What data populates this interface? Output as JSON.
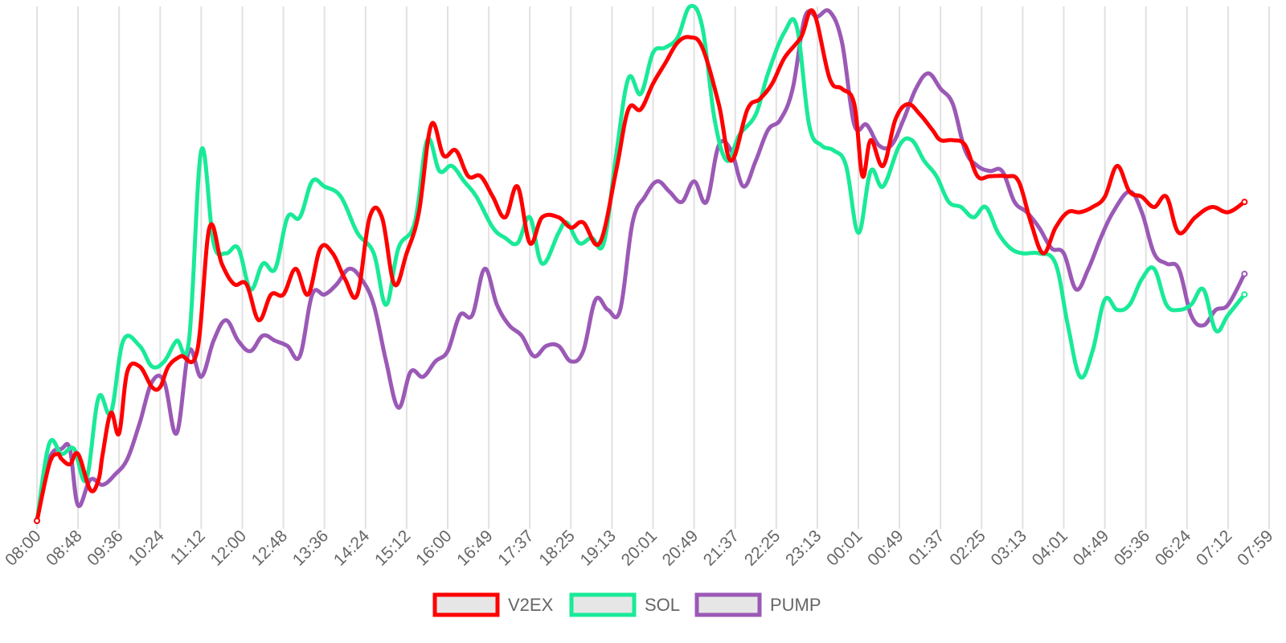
{
  "chart_data": {
    "type": "line",
    "grid": "vertical",
    "legend_position": "bottom",
    "x_labels": [
      "08:00",
      "08:48",
      "09:36",
      "10:24",
      "11:12",
      "12:00",
      "12:48",
      "13:36",
      "14:24",
      "15:12",
      "16:00",
      "16:49",
      "17:37",
      "18:25",
      "19:13",
      "20:01",
      "20:49",
      "21:37",
      "22:25",
      "23:13",
      "00:01",
      "00:49",
      "01:37",
      "02:25",
      "03:13",
      "04:01",
      "04:49",
      "05:36",
      "06:24",
      "07:12",
      "07:59"
    ],
    "y_axis_labels_shown": false,
    "series": [
      {
        "name": "V2EX",
        "color": "#ff0000",
        "points": [
          [
            0,
            0
          ],
          [
            0.3,
            11
          ],
          [
            0.5,
            13
          ],
          [
            0.6,
            12
          ],
          [
            0.8,
            11
          ],
          [
            1,
            13
          ],
          [
            1.3,
            6
          ],
          [
            1.5,
            8
          ],
          [
            1.6,
            13
          ],
          [
            1.8,
            21
          ],
          [
            2,
            17
          ],
          [
            2.2,
            29
          ],
          [
            2.5,
            30
          ],
          [
            2.8,
            26
          ],
          [
            3,
            26
          ],
          [
            3.2,
            30
          ],
          [
            3.5,
            32
          ],
          [
            3.9,
            33
          ],
          [
            4.2,
            57
          ],
          [
            4.5,
            50
          ],
          [
            4.8,
            46
          ],
          [
            5.1,
            46
          ],
          [
            5.4,
            39
          ],
          [
            5.7,
            44
          ],
          [
            6,
            44
          ],
          [
            6.3,
            49
          ],
          [
            6.6,
            44
          ],
          [
            6.9,
            53
          ],
          [
            7.2,
            52
          ],
          [
            7.5,
            47
          ],
          [
            7.8,
            44
          ],
          [
            8.1,
            59
          ],
          [
            8.4,
            59
          ],
          [
            8.7,
            46
          ],
          [
            9,
            52
          ],
          [
            9.3,
            60
          ],
          [
            9.6,
            77
          ],
          [
            9.9,
            71
          ],
          [
            10.2,
            72
          ],
          [
            10.5,
            67
          ],
          [
            10.8,
            67
          ],
          [
            11.1,
            63
          ],
          [
            11.4,
            59
          ],
          [
            11.7,
            65
          ],
          [
            12,
            54
          ],
          [
            12.3,
            59
          ],
          [
            12.7,
            59
          ],
          [
            13,
            57
          ],
          [
            13.3,
            58
          ],
          [
            13.7,
            54
          ],
          [
            14.1,
            68
          ],
          [
            14.4,
            80
          ],
          [
            14.7,
            80
          ],
          [
            15,
            85
          ],
          [
            15.3,
            89
          ],
          [
            15.6,
            93
          ],
          [
            15.9,
            94
          ],
          [
            16.2,
            92
          ],
          [
            16.6,
            81
          ],
          [
            16.9,
            70
          ],
          [
            17.3,
            80
          ],
          [
            17.6,
            82
          ],
          [
            17.9,
            85
          ],
          [
            18.2,
            90
          ],
          [
            18.6,
            94
          ],
          [
            18.9,
            99
          ],
          [
            19.3,
            86
          ],
          [
            19.6,
            84
          ],
          [
            19.9,
            81
          ],
          [
            20.1,
            67
          ],
          [
            20.3,
            74
          ],
          [
            20.6,
            69
          ],
          [
            20.9,
            78
          ],
          [
            21.2,
            81
          ],
          [
            21.5,
            79
          ],
          [
            21.8,
            76
          ],
          [
            22,
            74
          ],
          [
            22.3,
            74
          ],
          [
            22.6,
            73
          ],
          [
            22.9,
            67
          ],
          [
            23.2,
            67
          ],
          [
            23.6,
            67
          ],
          [
            23.9,
            66
          ],
          [
            24.2,
            58
          ],
          [
            24.5,
            52
          ],
          [
            24.8,
            57
          ],
          [
            25.1,
            60
          ],
          [
            25.4,
            60
          ],
          [
            25.7,
            61
          ],
          [
            26,
            63
          ],
          [
            26.3,
            69
          ],
          [
            26.6,
            64
          ],
          [
            26.9,
            63
          ],
          [
            27.2,
            61
          ],
          [
            27.5,
            63
          ],
          [
            27.8,
            56
          ],
          [
            28.2,
            59
          ],
          [
            28.6,
            61
          ],
          [
            29,
            60
          ],
          [
            29.4,
            62
          ]
        ]
      },
      {
        "name": "SOL",
        "color": "#19ea98",
        "points": [
          [
            0,
            0
          ],
          [
            0.3,
            15
          ],
          [
            0.6,
            13
          ],
          [
            0.9,
            14
          ],
          [
            1.2,
            8
          ],
          [
            1.5,
            24
          ],
          [
            1.8,
            21
          ],
          [
            2.1,
            35
          ],
          [
            2.5,
            34
          ],
          [
            2.8,
            30
          ],
          [
            3.1,
            31
          ],
          [
            3.4,
            35
          ],
          [
            3.7,
            35
          ],
          [
            4,
            72
          ],
          [
            4.3,
            54
          ],
          [
            4.6,
            52
          ],
          [
            4.9,
            53
          ],
          [
            5.2,
            45
          ],
          [
            5.5,
            50
          ],
          [
            5.8,
            49
          ],
          [
            6.1,
            59
          ],
          [
            6.4,
            59
          ],
          [
            6.7,
            66
          ],
          [
            7,
            65
          ],
          [
            7.4,
            63
          ],
          [
            7.8,
            56
          ],
          [
            8.2,
            52
          ],
          [
            8.5,
            42
          ],
          [
            8.8,
            53
          ],
          [
            9.2,
            58
          ],
          [
            9.5,
            74
          ],
          [
            9.8,
            68
          ],
          [
            10.1,
            69
          ],
          [
            10.4,
            66
          ],
          [
            10.7,
            63
          ],
          [
            11.1,
            57
          ],
          [
            11.4,
            55
          ],
          [
            11.7,
            54
          ],
          [
            12,
            59
          ],
          [
            12.3,
            50
          ],
          [
            12.7,
            56
          ],
          [
            12.9,
            58
          ],
          [
            13.2,
            54
          ],
          [
            13.5,
            55
          ],
          [
            13.8,
            54
          ],
          [
            14.1,
            71
          ],
          [
            14.4,
            86
          ],
          [
            14.7,
            83
          ],
          [
            15,
            91
          ],
          [
            15.3,
            92
          ],
          [
            15.6,
            94
          ],
          [
            15.9,
            100
          ],
          [
            16.2,
            96
          ],
          [
            16.5,
            78
          ],
          [
            16.8,
            70
          ],
          [
            17.1,
            75
          ],
          [
            17.5,
            79
          ],
          [
            17.8,
            87
          ],
          [
            18.2,
            95
          ],
          [
            18.5,
            96
          ],
          [
            18.8,
            77
          ],
          [
            19.1,
            73
          ],
          [
            19.4,
            72
          ],
          [
            19.7,
            69
          ],
          [
            20,
            56
          ],
          [
            20.3,
            68
          ],
          [
            20.6,
            65
          ],
          [
            21,
            73
          ],
          [
            21.3,
            74
          ],
          [
            21.6,
            70
          ],
          [
            21.9,
            67
          ],
          [
            22.2,
            62
          ],
          [
            22.5,
            61
          ],
          [
            22.8,
            59
          ],
          [
            23.1,
            61
          ],
          [
            23.4,
            56
          ],
          [
            23.7,
            53
          ],
          [
            24,
            52
          ],
          [
            24.4,
            52
          ],
          [
            24.8,
            50
          ],
          [
            25.1,
            38
          ],
          [
            25.4,
            28
          ],
          [
            25.7,
            33
          ],
          [
            26,
            43
          ],
          [
            26.3,
            41
          ],
          [
            26.6,
            42
          ],
          [
            26.9,
            47
          ],
          [
            27.2,
            49
          ],
          [
            27.5,
            42
          ],
          [
            27.8,
            41
          ],
          [
            28.1,
            42
          ],
          [
            28.4,
            45
          ],
          [
            28.7,
            37
          ],
          [
            29,
            40
          ],
          [
            29.4,
            44
          ]
        ]
      },
      {
        "name": "PUMP",
        "color": "#9b59b6",
        "points": [
          [
            0,
            0
          ],
          [
            0.3,
            12
          ],
          [
            0.6,
            14
          ],
          [
            0.8,
            14
          ],
          [
            1,
            3
          ],
          [
            1.3,
            8
          ],
          [
            1.6,
            7
          ],
          [
            1.9,
            9
          ],
          [
            2.2,
            12
          ],
          [
            2.5,
            19
          ],
          [
            2.8,
            27
          ],
          [
            3.1,
            27
          ],
          [
            3.4,
            17
          ],
          [
            3.7,
            33
          ],
          [
            4,
            28
          ],
          [
            4.3,
            35
          ],
          [
            4.6,
            39
          ],
          [
            4.9,
            35
          ],
          [
            5.2,
            33
          ],
          [
            5.5,
            36
          ],
          [
            5.8,
            35
          ],
          [
            6.1,
            34
          ],
          [
            6.4,
            32
          ],
          [
            6.7,
            44
          ],
          [
            7,
            44
          ],
          [
            7.3,
            46
          ],
          [
            7.6,
            49
          ],
          [
            7.9,
            47
          ],
          [
            8.2,
            42
          ],
          [
            8.5,
            31
          ],
          [
            8.8,
            22
          ],
          [
            9.1,
            29
          ],
          [
            9.4,
            28
          ],
          [
            9.7,
            31
          ],
          [
            10,
            33
          ],
          [
            10.3,
            40
          ],
          [
            10.6,
            40
          ],
          [
            10.9,
            49
          ],
          [
            11.2,
            42
          ],
          [
            11.5,
            38
          ],
          [
            11.8,
            36
          ],
          [
            12.1,
            32
          ],
          [
            12.4,
            34
          ],
          [
            12.7,
            34
          ],
          [
            13,
            31
          ],
          [
            13.3,
            33
          ],
          [
            13.6,
            43
          ],
          [
            13.9,
            41
          ],
          [
            14.2,
            41
          ],
          [
            14.5,
            58
          ],
          [
            14.8,
            63
          ],
          [
            15.1,
            66
          ],
          [
            15.4,
            64
          ],
          [
            15.7,
            62
          ],
          [
            16,
            66
          ],
          [
            16.3,
            62
          ],
          [
            16.6,
            73
          ],
          [
            16.9,
            72
          ],
          [
            17.2,
            65
          ],
          [
            17.5,
            70
          ],
          [
            17.8,
            76
          ],
          [
            18.1,
            78
          ],
          [
            18.4,
            84
          ],
          [
            18.7,
            98
          ],
          [
            19,
            98
          ],
          [
            19.3,
            99
          ],
          [
            19.6,
            93
          ],
          [
            19.9,
            77
          ],
          [
            20.2,
            77
          ],
          [
            20.5,
            73
          ],
          [
            20.8,
            73
          ],
          [
            21.1,
            78
          ],
          [
            21.4,
            84
          ],
          [
            21.7,
            87
          ],
          [
            22,
            84
          ],
          [
            22.3,
            81
          ],
          [
            22.6,
            72
          ],
          [
            22.9,
            69
          ],
          [
            23.2,
            68
          ],
          [
            23.5,
            68
          ],
          [
            23.8,
            62
          ],
          [
            24.1,
            60
          ],
          [
            24.4,
            57
          ],
          [
            24.7,
            53
          ],
          [
            25,
            52
          ],
          [
            25.3,
            45
          ],
          [
            25.6,
            49
          ],
          [
            25.9,
            55
          ],
          [
            26.2,
            60
          ],
          [
            26.6,
            64
          ],
          [
            26.9,
            60
          ],
          [
            27.2,
            52
          ],
          [
            27.5,
            50
          ],
          [
            27.8,
            49
          ],
          [
            28.1,
            40
          ],
          [
            28.4,
            38
          ],
          [
            28.7,
            41
          ],
          [
            29,
            42
          ],
          [
            29.4,
            48
          ]
        ]
      }
    ]
  }
}
